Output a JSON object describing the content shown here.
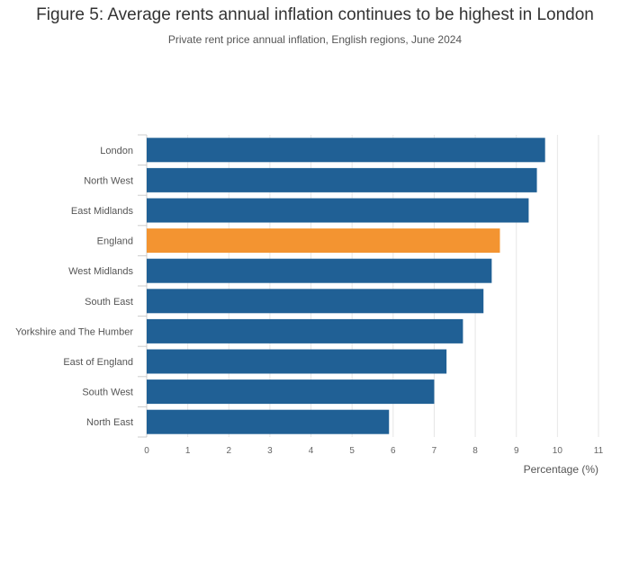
{
  "title": "Figure 5: Average rents annual inflation continues to be highest in London",
  "subtitle": "Private rent price annual inflation, English regions, June 2024",
  "colors": {
    "bar": "#206095",
    "highlight": "#f39431",
    "grid": "#e6e6e6",
    "axis": "#cccccc"
  },
  "chart_data": {
    "type": "bar",
    "orientation": "horizontal",
    "categories": [
      "London",
      "North West",
      "East Midlands",
      "England",
      "West Midlands",
      "South East",
      "Yorkshire and The Humber",
      "East of England",
      "South West",
      "North East"
    ],
    "values": [
      9.7,
      9.5,
      9.3,
      8.6,
      8.4,
      8.2,
      7.7,
      7.3,
      7.0,
      5.9
    ],
    "highlight_category": "England",
    "xlabel": "Percentage (%)",
    "ylabel": "",
    "xlim": [
      0,
      11
    ],
    "ticks": [
      "0",
      "1",
      "2",
      "3",
      "4",
      "5",
      "6",
      "7",
      "8",
      "9",
      "10",
      "11"
    ],
    "grid": true,
    "legend": "none"
  }
}
